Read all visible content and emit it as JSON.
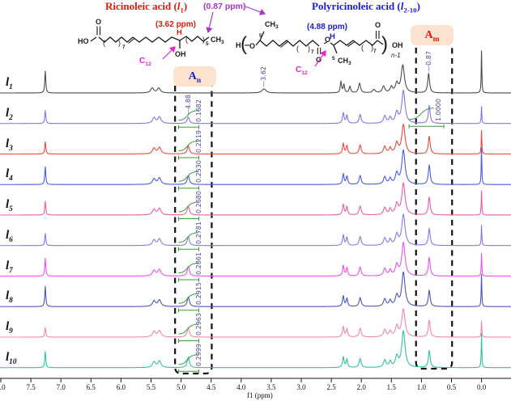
{
  "header": {
    "title_left": {
      "pre": "Ricinoleic acid (",
      "var": "l",
      "sub": "1",
      "post": ")"
    },
    "title_right": {
      "pre": "Polyricinoleic acid (",
      "var": "l",
      "sub": "2-10",
      "post": ")"
    },
    "ann_087": "(0.87 ppm)",
    "ann_362": "(3.62 ppm)",
    "ann_488": "(4.88 ppm)",
    "c12_left": {
      "base": "C",
      "sub": "12"
    },
    "c12_right": {
      "base": "C",
      "sub": "12"
    },
    "region_an": {
      "base": "A",
      "sub": "n"
    },
    "region_am": {
      "base": "A",
      "sub": "m"
    },
    "struct_left": {
      "ho": "HO",
      "o_top": "O",
      "n7": "7",
      "h_red": "H",
      "oh": "OH",
      "n5": "5",
      "ch3": "CH",
      "ch3_sub": "3",
      "paren_open": "(",
      "paren_close": ")"
    },
    "struct_right": {
      "h": "H",
      "o_ring": "O",
      "sub_top": "5",
      "ch3_top": "CH",
      "ch3_top_sub": "3",
      "n7a": "7",
      "o_carbonyl1": "O",
      "o_ester": "O",
      "h_blue": "H",
      "sub_bot": "5",
      "ch3_bot": "CH",
      "ch3_bot_sub": "3",
      "n7b": "7",
      "o_carbonyl2": "O",
      "oh": "OH",
      "n_minus": "n-1",
      "paren_open": "(",
      "paren_close": ")"
    }
  },
  "colors": {
    "red": "#d91d0e",
    "blue": "#1b1bd8",
    "magenta": "#ee22cc",
    "violet": "#a833d1",
    "green": "#3c9e3c",
    "label_blue": "#4a4aa0",
    "peach": "#fbe3cf",
    "axis": "#1a1a1a"
  },
  "axis": {
    "label": "f1 (ppm)",
    "ticks": [
      "8.0",
      "7.5",
      "7.0",
      "6.5",
      "6.0",
      "5.5",
      "5.0",
      "4.5",
      "4.0",
      "3.5",
      "3.0",
      "2.5",
      "2.0",
      "1.5",
      "1.0",
      "0.5",
      "0.0"
    ]
  },
  "regions": [
    {
      "id": "an",
      "ppm_from": 5.1,
      "ppm_to": 4.49
    },
    {
      "id": "am",
      "ppm_from": 1.09,
      "ppm_to": 0.49
    }
  ],
  "chart_data": {
    "type": "line",
    "description": "Stacked 1H NMR spectra of ricinoleic acid (l1) and polyricinoleic acids (l2-l10)",
    "xlabel": "f1 (ppm)",
    "xlim": [
      8.01,
      -0.49
    ],
    "x_unit": "ppm",
    "peak_format": [
      "ppm",
      "height_px",
      "half_width_ppm"
    ],
    "series": [
      {
        "label": {
          "var": "l",
          "sub": "1"
        },
        "color": "#4b4b4b",
        "peaks": [
          [
            7.26,
            27,
            0.01
          ],
          [
            5.48,
            6,
            0.03
          ],
          [
            5.37,
            6,
            0.03
          ],
          [
            3.62,
            5,
            0.04
          ],
          [
            2.34,
            14,
            0.013
          ],
          [
            2.29,
            10,
            0.013
          ],
          [
            2.19,
            8,
            0.016
          ],
          [
            2.03,
            12,
            0.02
          ],
          [
            1.79,
            4,
            0.025
          ],
          [
            1.63,
            8,
            0.025
          ],
          [
            1.5,
            7,
            0.022
          ],
          [
            1.41,
            11,
            0.028
          ],
          [
            1.31,
            34,
            0.032
          ],
          [
            0.88,
            24,
            0.018
          ],
          [
            0.0,
            52,
            0.006
          ]
        ],
        "peak_picks": [
          {
            "ppm": 3.62,
            "text": "3.62"
          },
          {
            "ppm": 0.87,
            "text": "0.87"
          }
        ],
        "integrals": []
      },
      {
        "label": {
          "var": "l",
          "sub": "2"
        },
        "color": "#8673e8",
        "peaks": [
          [
            7.26,
            16,
            0.01
          ],
          [
            5.45,
            7,
            0.03
          ],
          [
            5.36,
            8,
            0.03
          ],
          [
            4.88,
            8,
            0.022
          ],
          [
            2.3,
            13,
            0.015
          ],
          [
            2.24,
            10,
            0.015
          ],
          [
            2.02,
            11,
            0.02
          ],
          [
            1.61,
            9,
            0.025
          ],
          [
            1.52,
            7,
            0.022
          ],
          [
            1.41,
            13,
            0.028
          ],
          [
            1.3,
            40,
            0.032
          ],
          [
            0.87,
            22,
            0.018
          ],
          [
            0.0,
            21,
            0.006
          ]
        ],
        "peak_picks": [
          {
            "ppm": 4.88,
            "text": "4.88"
          }
        ],
        "integrals": [
          {
            "ppm": 4.88,
            "value": "0.1682"
          },
          {
            "ppm": 0.87,
            "value": "1.0000"
          }
        ]
      },
      {
        "label": {
          "var": "l",
          "sub": "3"
        },
        "color": "#ee4940",
        "peaks": [
          [
            7.26,
            15,
            0.01
          ],
          [
            5.45,
            7,
            0.03
          ],
          [
            5.36,
            8,
            0.03
          ],
          [
            4.88,
            10,
            0.022
          ],
          [
            2.3,
            13,
            0.015
          ],
          [
            2.24,
            10,
            0.015
          ],
          [
            2.02,
            11,
            0.02
          ],
          [
            1.61,
            9,
            0.025
          ],
          [
            1.52,
            7,
            0.022
          ],
          [
            1.41,
            13,
            0.028
          ],
          [
            1.3,
            36,
            0.032
          ],
          [
            0.87,
            22,
            0.018
          ],
          [
            0.0,
            29,
            0.006
          ]
        ],
        "peak_picks": [],
        "integrals": [
          {
            "ppm": 4.88,
            "value": "0.2219"
          }
        ]
      },
      {
        "label": {
          "var": "l",
          "sub": "4"
        },
        "color": "#4a5ce0",
        "peaks": [
          [
            7.26,
            22,
            0.01
          ],
          [
            5.45,
            7,
            0.03
          ],
          [
            5.36,
            8,
            0.03
          ],
          [
            4.88,
            11,
            0.022
          ],
          [
            2.3,
            13,
            0.015
          ],
          [
            2.24,
            10,
            0.015
          ],
          [
            2.02,
            11,
            0.02
          ],
          [
            1.61,
            9,
            0.025
          ],
          [
            1.52,
            7,
            0.022
          ],
          [
            1.41,
            13,
            0.028
          ],
          [
            1.3,
            42,
            0.032
          ],
          [
            0.87,
            24,
            0.018
          ],
          [
            0.0,
            45,
            0.006
          ]
        ],
        "peak_picks": [],
        "integrals": [
          {
            "ppm": 4.88,
            "value": "0.2530"
          }
        ]
      },
      {
        "label": {
          "var": "l",
          "sub": "5"
        },
        "color": "#ec5fa4",
        "peaks": [
          [
            7.26,
            17,
            0.01
          ],
          [
            5.45,
            7,
            0.03
          ],
          [
            5.36,
            8,
            0.03
          ],
          [
            4.88,
            11,
            0.022
          ],
          [
            2.3,
            13,
            0.015
          ],
          [
            2.24,
            10,
            0.015
          ],
          [
            2.02,
            11,
            0.02
          ],
          [
            1.61,
            9,
            0.025
          ],
          [
            1.52,
            7,
            0.022
          ],
          [
            1.41,
            13,
            0.028
          ],
          [
            1.3,
            39,
            0.032
          ],
          [
            0.87,
            22,
            0.018
          ],
          [
            0.0,
            30,
            0.006
          ]
        ],
        "peak_picks": [],
        "integrals": [
          {
            "ppm": 4.88,
            "value": "0.2680"
          }
        ]
      },
      {
        "label": {
          "var": "l",
          "sub": "6"
        },
        "color": "#8b76ea",
        "peaks": [
          [
            7.26,
            15,
            0.01
          ],
          [
            5.45,
            7,
            0.03
          ],
          [
            5.36,
            8,
            0.03
          ],
          [
            4.88,
            11,
            0.022
          ],
          [
            2.3,
            13,
            0.015
          ],
          [
            2.24,
            10,
            0.015
          ],
          [
            2.02,
            11,
            0.02
          ],
          [
            1.61,
            9,
            0.025
          ],
          [
            1.52,
            7,
            0.022
          ],
          [
            1.41,
            13,
            0.028
          ],
          [
            1.3,
            38,
            0.032
          ],
          [
            0.87,
            21,
            0.018
          ],
          [
            0.0,
            25,
            0.006
          ]
        ],
        "peak_picks": [],
        "integrals": [
          {
            "ppm": 4.88,
            "value": "0.2781"
          }
        ]
      },
      {
        "label": {
          "var": "l",
          "sub": "7"
        },
        "color": "#ef52ea",
        "peaks": [
          [
            7.26,
            22,
            0.01
          ],
          [
            5.45,
            7,
            0.03
          ],
          [
            5.36,
            8,
            0.03
          ],
          [
            4.88,
            12,
            0.022
          ],
          [
            2.3,
            13,
            0.015
          ],
          [
            2.24,
            10,
            0.015
          ],
          [
            2.02,
            11,
            0.02
          ],
          [
            1.61,
            9,
            0.025
          ],
          [
            1.52,
            7,
            0.022
          ],
          [
            1.41,
            13,
            0.028
          ],
          [
            1.3,
            41,
            0.032
          ],
          [
            0.87,
            23,
            0.018
          ],
          [
            0.0,
            28,
            0.006
          ]
        ],
        "peak_picks": [],
        "integrals": [
          {
            "ppm": 4.88,
            "value": "0.2861"
          }
        ]
      },
      {
        "label": {
          "var": "l",
          "sub": "8"
        },
        "color": "#4f55b8",
        "peaks": [
          [
            7.26,
            25,
            0.01
          ],
          [
            5.45,
            7,
            0.03
          ],
          [
            5.36,
            8,
            0.03
          ],
          [
            4.88,
            12,
            0.022
          ],
          [
            2.3,
            13,
            0.015
          ],
          [
            2.24,
            10,
            0.015
          ],
          [
            2.02,
            11,
            0.02
          ],
          [
            1.61,
            9,
            0.025
          ],
          [
            1.52,
            7,
            0.022
          ],
          [
            1.41,
            13,
            0.028
          ],
          [
            1.3,
            42,
            0.032
          ],
          [
            0.87,
            20,
            0.018
          ],
          [
            0.0,
            40,
            0.006
          ]
        ],
        "peak_picks": [],
        "integrals": [
          {
            "ppm": 4.88,
            "value": "0.2915"
          }
        ]
      },
      {
        "label": {
          "var": "l",
          "sub": "9"
        },
        "color": "#f287ad",
        "peaks": [
          [
            7.26,
            12,
            0.01
          ],
          [
            5.45,
            7,
            0.03
          ],
          [
            5.36,
            8,
            0.03
          ],
          [
            4.88,
            12,
            0.022
          ],
          [
            2.3,
            13,
            0.015
          ],
          [
            2.24,
            10,
            0.015
          ],
          [
            2.02,
            11,
            0.02
          ],
          [
            1.61,
            9,
            0.025
          ],
          [
            1.52,
            7,
            0.022
          ],
          [
            1.41,
            13,
            0.028
          ],
          [
            1.3,
            34,
            0.032
          ],
          [
            0.87,
            21,
            0.018
          ],
          [
            0.0,
            20,
            0.006
          ]
        ],
        "peak_picks": [],
        "integrals": [
          {
            "ppm": 4.88,
            "value": "0.2963"
          }
        ]
      },
      {
        "label": {
          "var": "l",
          "sub": "10"
        },
        "color": "#34bfa4",
        "peaks": [
          [
            7.26,
            20,
            0.01
          ],
          [
            5.45,
            7,
            0.03
          ],
          [
            5.36,
            8,
            0.03
          ],
          [
            4.88,
            13,
            0.022
          ],
          [
            2.3,
            13,
            0.015
          ],
          [
            2.24,
            10,
            0.015
          ],
          [
            2.02,
            11,
            0.02
          ],
          [
            1.61,
            9,
            0.025
          ],
          [
            1.52,
            7,
            0.022
          ],
          [
            1.41,
            13,
            0.028
          ],
          [
            1.3,
            45,
            0.032
          ],
          [
            0.87,
            21,
            0.018
          ],
          [
            0.0,
            42,
            0.006
          ]
        ],
        "peak_picks": [],
        "integrals": [
          {
            "ppm": 4.88,
            "value": "0.2999"
          }
        ]
      }
    ]
  }
}
